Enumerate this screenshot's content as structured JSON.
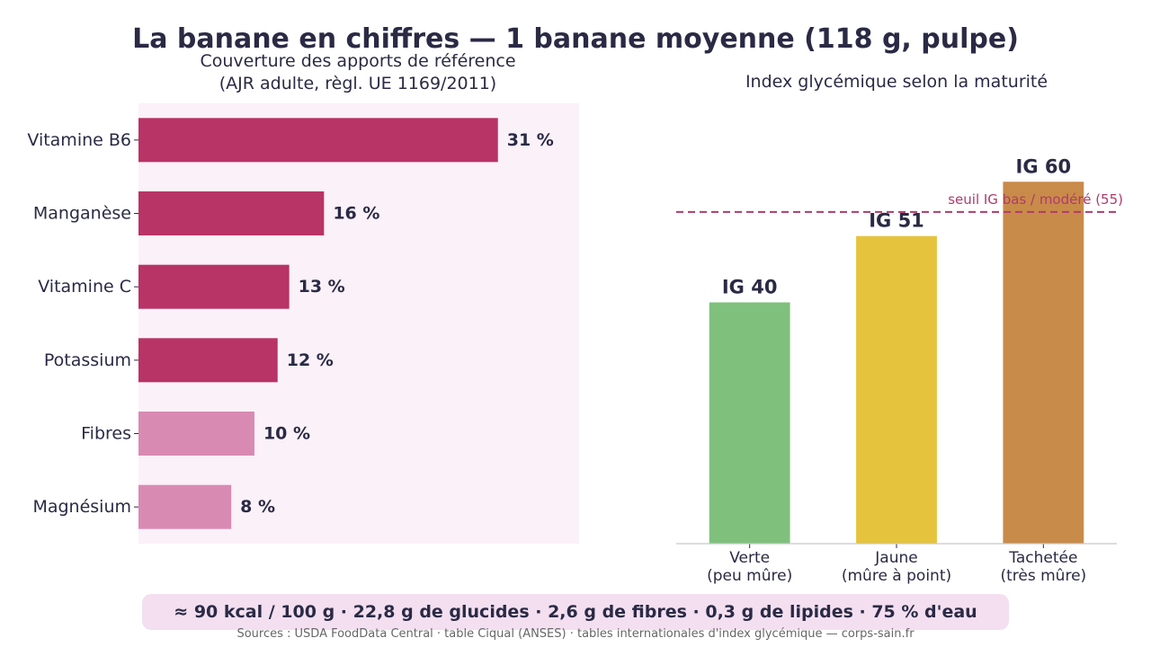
{
  "title": "La banane en chiffres — 1 banane moyenne (118 g, pulpe)",
  "chart_data": [
    {
      "type": "bar",
      "orientation": "horizontal",
      "title_lines": [
        "Couverture des apports de référence",
        "(AJR adulte, règl. UE 1169/2011)"
      ],
      "categories": [
        "Vitamine B6",
        "Manganèse",
        "Vitamine C",
        "Potassium",
        "Fibres",
        "Magnésium"
      ],
      "values": [
        31,
        16,
        13,
        12,
        10,
        8
      ],
      "value_labels": [
        "31 %",
        "16 %",
        "13 %",
        "12 %",
        "10 %",
        "8 %"
      ],
      "xlim": [
        0,
        38
      ],
      "colors": [
        "#b83366",
        "#b83366",
        "#b83366",
        "#b83366",
        "#d98ab3",
        "#d98ab3"
      ],
      "background": "#fbf1f8",
      "grid": false
    },
    {
      "type": "bar",
      "orientation": "vertical",
      "title": "Index glycémique selon la maturité",
      "categories": [
        [
          "Verte",
          "(peu mûre)"
        ],
        [
          "Jaune",
          "(mûre à point)"
        ],
        [
          "Tachetée",
          "(très mûre)"
        ]
      ],
      "values": [
        40,
        51,
        60
      ],
      "value_labels": [
        "IG 40",
        "IG 51",
        "IG 60"
      ],
      "ylim": [
        0,
        73
      ],
      "colors": [
        "#7fc07d",
        "#e6c33c",
        "#c98b4a"
      ],
      "threshold": {
        "value": 55,
        "label": "seuil IG bas / modéré (55)",
        "color": "#b03a6a"
      },
      "grid": false
    }
  ],
  "summary": "≈ 90 kcal / 100 g  ·  22,8 g de glucides  ·  2,6 g de fibres  ·  0,3 g de lipides  ·  75 % d'eau",
  "sources": "Sources : USDA FoodData Central · table Ciqual (ANSES) · tables internationales d'index glycémique — corps-sain.fr"
}
